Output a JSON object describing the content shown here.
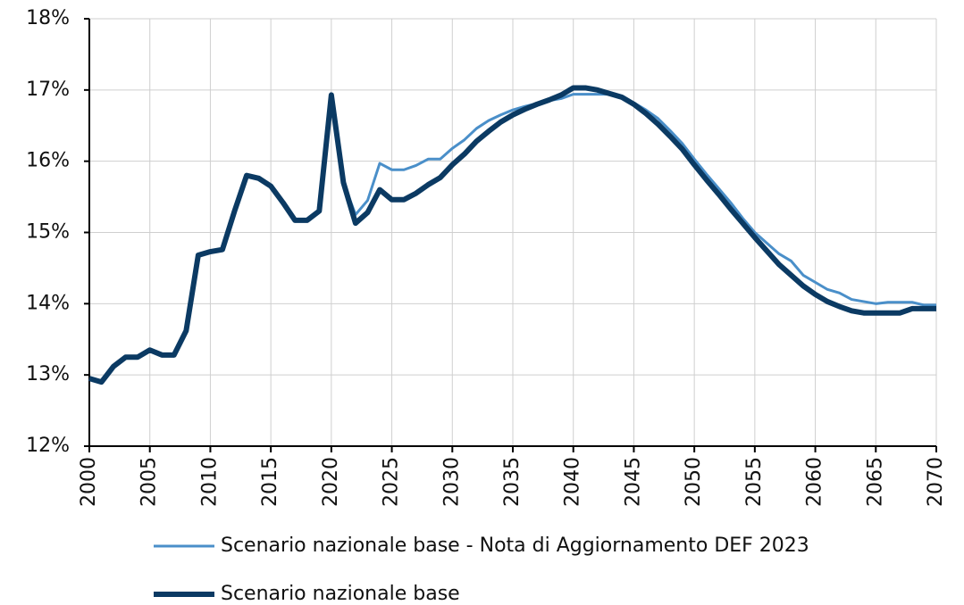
{
  "chart_data": {
    "type": "line",
    "x": [
      2000,
      2001,
      2002,
      2003,
      2004,
      2005,
      2006,
      2007,
      2008,
      2009,
      2010,
      2011,
      2012,
      2013,
      2014,
      2015,
      2016,
      2017,
      2018,
      2019,
      2020,
      2021,
      2022,
      2023,
      2024,
      2025,
      2026,
      2027,
      2028,
      2029,
      2030,
      2031,
      2032,
      2033,
      2034,
      2035,
      2036,
      2037,
      2038,
      2039,
      2040,
      2041,
      2042,
      2043,
      2044,
      2045,
      2046,
      2047,
      2048,
      2049,
      2050,
      2051,
      2052,
      2053,
      2054,
      2055,
      2056,
      2057,
      2058,
      2059,
      2060,
      2061,
      2062,
      2063,
      2064,
      2065,
      2066,
      2067,
      2068,
      2069,
      2070
    ],
    "series": [
      {
        "name": "Scenario nazionale base - Nota di Aggiornamento DEF 2023",
        "color": "#4a8fc9",
        "width": 3,
        "values": [
          12.95,
          12.9,
          13.12,
          13.25,
          13.25,
          13.35,
          13.28,
          13.28,
          13.62,
          14.68,
          14.73,
          14.76,
          15.3,
          15.8,
          15.76,
          15.65,
          15.42,
          15.17,
          15.17,
          15.3,
          16.93,
          15.7,
          15.25,
          15.45,
          15.97,
          15.88,
          15.88,
          15.94,
          16.03,
          16.03,
          16.18,
          16.3,
          16.46,
          16.57,
          16.65,
          16.72,
          16.77,
          16.81,
          16.85,
          16.88,
          16.94,
          16.94,
          16.94,
          16.94,
          16.9,
          16.82,
          16.72,
          16.6,
          16.43,
          16.25,
          16.03,
          15.82,
          15.62,
          15.42,
          15.2,
          15.0,
          14.85,
          14.7,
          14.6,
          14.4,
          14.3,
          14.2,
          14.15,
          14.06,
          14.03,
          14.0,
          14.02,
          14.02,
          14.02,
          13.98,
          13.98
        ]
      },
      {
        "name": "Scenario nazionale base",
        "color": "#0b3a63",
        "width": 6,
        "values": [
          12.95,
          12.9,
          13.12,
          13.25,
          13.25,
          13.35,
          13.28,
          13.28,
          13.62,
          14.68,
          14.73,
          14.76,
          15.3,
          15.8,
          15.76,
          15.65,
          15.42,
          15.17,
          15.17,
          15.3,
          16.93,
          15.7,
          15.13,
          15.28,
          15.6,
          15.46,
          15.46,
          15.55,
          15.67,
          15.77,
          15.95,
          16.1,
          16.28,
          16.42,
          16.55,
          16.65,
          16.73,
          16.8,
          16.86,
          16.93,
          17.03,
          17.03,
          17.0,
          16.95,
          16.9,
          16.8,
          16.67,
          16.52,
          16.35,
          16.17,
          15.95,
          15.74,
          15.54,
          15.33,
          15.13,
          14.93,
          14.74,
          14.55,
          14.4,
          14.25,
          14.13,
          14.03,
          13.96,
          13.9,
          13.87,
          13.87,
          13.87,
          13.87,
          13.93,
          13.93,
          13.93
        ]
      }
    ],
    "xlim": [
      2000,
      2070
    ],
    "xticks": [
      2000,
      2005,
      2010,
      2015,
      2020,
      2025,
      2030,
      2035,
      2040,
      2045,
      2050,
      2055,
      2060,
      2065,
      2070
    ],
    "ylim": [
      12,
      18
    ],
    "yticks": [
      {
        "value": 12,
        "label": "12%"
      },
      {
        "value": 13,
        "label": "13%"
      },
      {
        "value": 14,
        "label": "14%"
      },
      {
        "value": 15,
        "label": "15%"
      },
      {
        "value": 16,
        "label": "16%"
      },
      {
        "value": 17,
        "label": "17%"
      },
      {
        "value": 18,
        "label": "18%"
      }
    ],
    "grid": true
  }
}
